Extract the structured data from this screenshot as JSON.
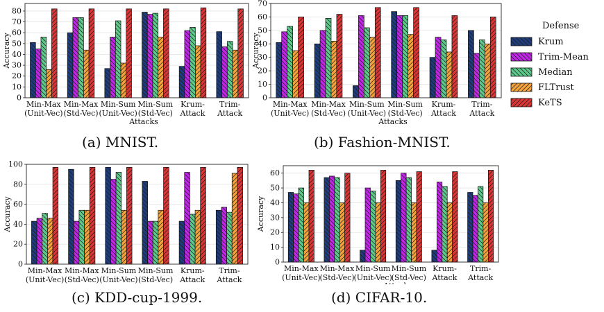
{
  "colors": {
    "Krum": "#1f3d7a",
    "Trim-Mean": "#c026e6",
    "Median": "#5ec98a",
    "FLTrust": "#f4a23b",
    "KeTS": "#d93535"
  },
  "legend": {
    "title": "Defense",
    "items": [
      "Krum",
      "Trim-Mean",
      "Median",
      "FLTrust",
      "KeTS"
    ]
  },
  "chart_data": [
    {
      "type": "bar",
      "caption": "(a)  MNIST.",
      "xlabel": "Attacks",
      "ylabel": "Accuracy",
      "ylim": [
        0,
        87
      ],
      "yticks": [
        0,
        10,
        20,
        30,
        40,
        50,
        60,
        70,
        80
      ],
      "categories": [
        [
          "Min-Max",
          "(Unit-Vec)"
        ],
        [
          "Min-Max",
          "(Std-Vec)"
        ],
        [
          "Min-Sum",
          "(Unit-Vec)"
        ],
        [
          "Min-Sum",
          "(Std-Vec)"
        ],
        [
          "Krum-",
          "Attack"
        ],
        [
          "Trim-",
          "Attack"
        ]
      ],
      "series": [
        {
          "name": "Krum",
          "values": [
            51,
            60,
            27,
            79,
            29,
            61
          ]
        },
        {
          "name": "Trim-Mean",
          "values": [
            45,
            74,
            56,
            77,
            62,
            47
          ]
        },
        {
          "name": "Median",
          "values": [
            56,
            74,
            71,
            78,
            65,
            52
          ]
        },
        {
          "name": "FLTrust",
          "values": [
            26,
            44,
            32,
            56,
            48,
            44
          ]
        },
        {
          "name": "KeTS",
          "values": [
            82,
            82,
            82,
            82,
            83,
            82
          ]
        }
      ]
    },
    {
      "type": "bar",
      "caption": "(b)  Fashion-MNIST.",
      "xlabel": "Attacks",
      "ylabel": "Accuracy",
      "ylim": [
        0,
        70
      ],
      "yticks": [
        0,
        10,
        20,
        30,
        40,
        50,
        60,
        70
      ],
      "categories": [
        [
          "Min-Max",
          "(Unit-Vec)"
        ],
        [
          "Min-Max",
          "(Std-Vec)"
        ],
        [
          "Min-Sum",
          "(Unit-Vec)"
        ],
        [
          "Min-Sum",
          "(Std-Vec)"
        ],
        [
          "Krum-",
          "Attack"
        ],
        [
          "Trim-",
          "Attack"
        ]
      ],
      "series": [
        {
          "name": "Krum",
          "values": [
            41,
            40,
            9,
            64,
            30,
            50
          ]
        },
        {
          "name": "Trim-Mean",
          "values": [
            49,
            50,
            61,
            61,
            45,
            33
          ]
        },
        {
          "name": "Median",
          "values": [
            53,
            59,
            52,
            61,
            43,
            43
          ]
        },
        {
          "name": "FLTrust",
          "values": [
            35,
            42,
            45,
            47,
            34,
            40
          ]
        },
        {
          "name": "KeTS",
          "values": [
            60,
            62,
            67,
            67,
            61,
            60
          ]
        }
      ]
    },
    {
      "type": "bar",
      "caption": "(c)  KDD-cup-1999.",
      "xlabel": "Attacks",
      "ylabel": "Accuracy",
      "ylim": [
        0,
        100
      ],
      "yticks": [
        0,
        20,
        40,
        60,
        80,
        100
      ],
      "categories": [
        [
          "Min-Max",
          "(Unit-Vec)"
        ],
        [
          "Min-Max",
          "(Std-Vec)"
        ],
        [
          "Min-Sum",
          "(Unit-Vec)"
        ],
        [
          "Min-Sum",
          "(Std-Vec)"
        ],
        [
          "Krum-",
          "Attack"
        ],
        [
          "Trim-",
          "Attack"
        ]
      ],
      "series": [
        {
          "name": "Krum",
          "values": [
            43,
            95,
            97,
            83,
            43,
            54
          ]
        },
        {
          "name": "Trim-Mean",
          "values": [
            46,
            43,
            85,
            43,
            92,
            57
          ]
        },
        {
          "name": "Median",
          "values": [
            51,
            54,
            92,
            43,
            50,
            52
          ]
        },
        {
          "name": "FLTrust",
          "values": [
            46,
            54,
            54,
            54,
            54,
            91
          ]
        },
        {
          "name": "KeTS",
          "values": [
            97,
            97,
            97,
            97,
            97,
            97
          ]
        }
      ]
    },
    {
      "type": "bar",
      "caption": "(d)  CIFAR-10.",
      "xlabel": "Attacks",
      "ylabel": "Accuracy",
      "ylim": [
        0,
        65
      ],
      "yticks": [
        0,
        10,
        20,
        30,
        40,
        50,
        60
      ],
      "categories": [
        [
          "Min-Max",
          "(Unit-Vec)"
        ],
        [
          "Min-Max",
          "(Std-Vec)"
        ],
        [
          "Min-Sum",
          "(Unit-Vec)"
        ],
        [
          "Min-Sum",
          "(Std-Vec)"
        ],
        [
          "Krum-",
          "Attack"
        ],
        [
          "Trim-",
          "Attack"
        ]
      ],
      "series": [
        {
          "name": "Krum",
          "values": [
            47,
            57,
            8,
            55,
            8,
            47
          ]
        },
        {
          "name": "Trim-Mean",
          "values": [
            46,
            58,
            50,
            60,
            54,
            45
          ]
        },
        {
          "name": "Median",
          "values": [
            50,
            57,
            48,
            57,
            51,
            51
          ]
        },
        {
          "name": "FLTrust",
          "values": [
            40,
            40,
            40,
            40,
            40,
            40
          ]
        },
        {
          "name": "KeTS",
          "values": [
            62,
            60,
            62,
            61,
            61,
            62
          ]
        }
      ]
    }
  ]
}
